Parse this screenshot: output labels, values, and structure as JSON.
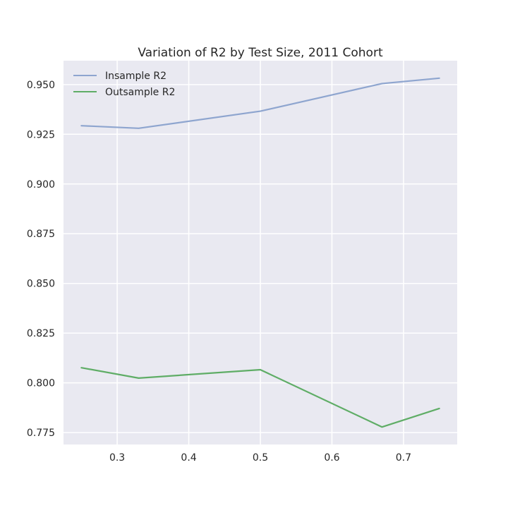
{
  "chart_data": {
    "type": "line",
    "title": "Variation of R2 by Test Size, 2011 Cohort",
    "xlabel": "",
    "ylabel": "",
    "x": [
      0.25,
      0.33,
      0.5,
      0.67,
      0.75
    ],
    "series": [
      {
        "name": "Insample R2",
        "values": [
          0.9293,
          0.928,
          0.9366,
          0.9505,
          0.9532
        ],
        "color": "#8ea5cf"
      },
      {
        "name": "Outsample R2",
        "values": [
          0.8076,
          0.8024,
          0.8066,
          0.7778,
          0.7871
        ],
        "color": "#5fad66"
      }
    ],
    "xlim": [
      0.225,
      0.775
    ],
    "ylim": [
      0.769,
      0.962
    ],
    "xticks": [
      0.3,
      0.4,
      0.5,
      0.6,
      0.7
    ],
    "xtick_labels": [
      "0.3",
      "0.4",
      "0.5",
      "0.6",
      "0.7"
    ],
    "yticks": [
      0.775,
      0.8,
      0.825,
      0.85,
      0.875,
      0.9,
      0.925,
      0.95
    ],
    "ytick_labels": [
      "0.775",
      "0.800",
      "0.825",
      "0.850",
      "0.875",
      "0.900",
      "0.925",
      "0.950"
    ],
    "grid": true,
    "legend_position": "top-left",
    "style": {
      "axes_bg": "#e9e9f1",
      "grid_color": "#ffffff"
    }
  }
}
